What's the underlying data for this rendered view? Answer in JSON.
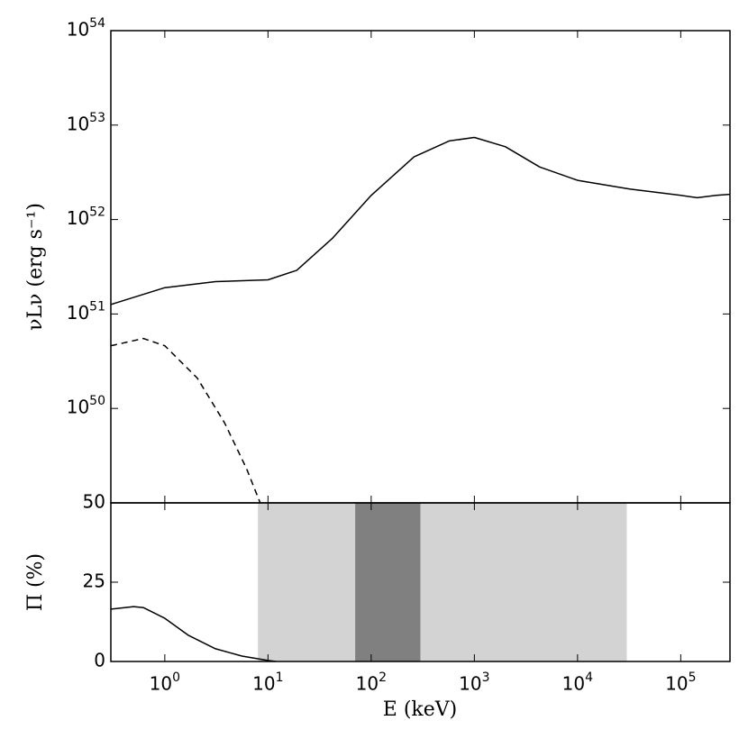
{
  "chart_data": [
    {
      "type": "line",
      "xscale": "log",
      "yscale": "log",
      "xlim": [
        0.3,
        300000
      ],
      "ylim": [
        1e+49,
        1e+54
      ],
      "yticks": [
        {
          "value": 1e+50,
          "label": "10^50"
        },
        {
          "value": 1e+51,
          "label": "10^51"
        },
        {
          "value": 1e+52,
          "label": "10^52"
        },
        {
          "value": 1e+53,
          "label": "10^53"
        },
        {
          "value": 1e+54,
          "label": "10^54"
        }
      ],
      "ylabel": "νLν (erg s⁻¹)",
      "series": [
        {
          "color": "#000000",
          "linestyle": "solid",
          "x": [
            0.3,
            1,
            3.1,
            10,
            19,
            42,
            100,
            260,
            570,
            1000,
            2000,
            4300,
            10000,
            32000,
            100000,
            145000,
            220000,
            300000
          ],
          "values": [
            1.26e+51,
            1.9e+51,
            2.2e+51,
            2.3e+51,
            2.9e+51,
            6.3e+51,
            1.8e+52,
            4.6e+52,
            6.8e+52,
            7.4e+52,
            5.9e+52,
            3.6e+52,
            2.6e+52,
            2.1e+52,
            1.8e+52,
            1.7e+52,
            1.8e+52,
            1.85e+52
          ]
        },
        {
          "color": "#000000",
          "linestyle": "dashed",
          "x": [
            0.3,
            0.62,
            1,
            2.06,
            3.8,
            6.2,
            8.4
          ],
          "values": [
            4.6e+50,
            5.5e+50,
            4.6e+50,
            2.1e+50,
            7e+49,
            2.3e+49,
            1e+49
          ]
        }
      ]
    },
    {
      "type": "line",
      "xscale": "log",
      "xlim": [
        0.3,
        300000
      ],
      "ylim": [
        0,
        50
      ],
      "xticks": [
        {
          "value": 1,
          "label": "10^0"
        },
        {
          "value": 10,
          "label": "10^1"
        },
        {
          "value": 100,
          "label": "10^2"
        },
        {
          "value": 1000,
          "label": "10^3"
        },
        {
          "value": 10000,
          "label": "10^4"
        },
        {
          "value": 100000,
          "label": "10^5"
        }
      ],
      "yticks": [
        0,
        25,
        50
      ],
      "xlabel": "E (keV)",
      "ylabel": "Π (%)",
      "bands": [
        {
          "x": [
            8,
            30000
          ],
          "color": "#d3d3d3"
        },
        {
          "x": [
            70,
            300
          ],
          "color": "#808080"
        }
      ],
      "series": [
        {
          "color": "#000000",
          "linestyle": "solid",
          "x": [
            0.3,
            0.5,
            0.62,
            1,
            1.7,
            3.1,
            5.6,
            10,
            12
          ],
          "values": [
            16.5,
            17.3,
            17,
            13.6,
            8.2,
            4,
            1.7,
            0.3,
            0
          ]
        }
      ]
    }
  ]
}
